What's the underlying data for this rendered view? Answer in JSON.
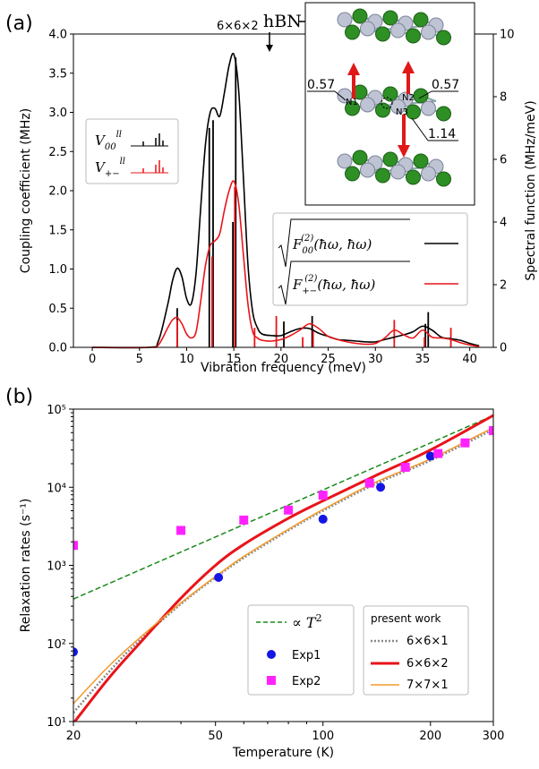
{
  "panel_a": {
    "label": "(a)",
    "supercell_label": "6×6×2",
    "material_label": "hBN",
    "structure_labels": {
      "n1": "N1",
      "n2": "N2",
      "n3": "N3",
      "d1": "0.57",
      "d2": "0.57",
      "d3": "1.14"
    },
    "legend_sticks": [
      {
        "label": "V00ll",
        "color": "#000000"
      },
      {
        "label": "V+−ll",
        "color": "#e8141a"
      }
    ],
    "legend_curves": [
      {
        "label": "√F00(2)(ħω,ħω)",
        "color": "#000000"
      },
      {
        "label": "√F+−(2)(ħω,ħω)",
        "color": "#e8141a"
      }
    ]
  },
  "panel_b": {
    "label": "(b)",
    "legend_left": [
      {
        "label": "∝ T²",
        "color": "#1a8a1a"
      },
      {
        "label": "Exp1",
        "color": "#1515e6"
      },
      {
        "label": "Exp2",
        "color": "#ff22ff"
      }
    ],
    "legend_right_title": "present work",
    "legend_right": [
      {
        "label": "6×6×1",
        "color": "#888888"
      },
      {
        "label": "6×6×2",
        "color": "#e8141a"
      },
      {
        "label": "7×7×1",
        "color": "#f39a2c"
      }
    ]
  },
  "chart_data": [
    {
      "type": "line",
      "xlabel": "Vibration frequency (meV)",
      "ylabel": "Coupling coefficient (MHz)",
      "y2label": "Spectral function (MHz/meV)",
      "xlim": [
        -2,
        42.5
      ],
      "ylim": [
        0,
        4.0
      ],
      "y2lim": [
        0,
        10
      ],
      "xticks": [
        0,
        5,
        10,
        15,
        20,
        25,
        30,
        35,
        40
      ],
      "yticks": [
        0.0,
        0.5,
        1.0,
        1.5,
        2.0,
        2.5,
        3.0,
        3.5,
        4.0
      ],
      "y2ticks": [
        0,
        2,
        4,
        6,
        8,
        10
      ],
      "ytick_labels": [
        "0.0",
        "0.5",
        "1.0",
        "1.5",
        "2.0",
        "2.5",
        "3.0",
        "3.5",
        "4.0"
      ],
      "y2tick_labels": [
        "0",
        "2",
        "4",
        "6",
        "8",
        "10"
      ],
      "series": [
        {
          "name": "√F00(2)(ħω,ħω)",
          "color": "#000000",
          "x": [
            0,
            6,
            7,
            8,
            8.5,
            9,
            9.5,
            10,
            10.5,
            11,
            11.5,
            12,
            12.5,
            13,
            13.5,
            14,
            14.5,
            15,
            15.5,
            16,
            16.5,
            17,
            17.5,
            18,
            19,
            20,
            21,
            22,
            23,
            24,
            25,
            26,
            27,
            28,
            29,
            30,
            31,
            32,
            33,
            34,
            35,
            36,
            37,
            38,
            39,
            40,
            41
          ],
          "y": [
            0,
            0,
            0.08,
            0.55,
            0.85,
            1.01,
            0.9,
            0.62,
            0.56,
            0.95,
            1.8,
            2.6,
            3.0,
            3.05,
            2.95,
            3.25,
            3.6,
            3.74,
            3.3,
            2.2,
            1.05,
            0.45,
            0.25,
            0.17,
            0.15,
            0.15,
            0.2,
            0.24,
            0.24,
            0.18,
            0.14,
            0.1,
            0.09,
            0.08,
            0.07,
            0.07,
            0.1,
            0.13,
            0.16,
            0.2,
            0.27,
            0.22,
            0.13,
            0.11,
            0.09,
            0.05,
            0.02
          ]
        },
        {
          "name": "√F+−(2)(ħω,ħω)",
          "color": "#e8141a",
          "x": [
            0,
            6,
            7,
            8,
            8.5,
            9,
            9.5,
            10,
            10.5,
            11,
            11.5,
            12,
            12.5,
            13,
            13.5,
            14,
            14.5,
            15,
            15.5,
            16,
            16.5,
            17,
            17.5,
            18,
            19,
            20,
            21,
            22,
            23,
            24,
            25,
            26,
            27,
            28,
            29,
            30,
            31,
            32,
            33,
            34,
            35,
            36,
            37,
            38,
            39,
            40,
            41
          ],
          "y": [
            0,
            0,
            0.03,
            0.25,
            0.35,
            0.38,
            0.3,
            0.17,
            0.12,
            0.2,
            0.6,
            1.05,
            1.3,
            1.36,
            1.45,
            1.75,
            2.0,
            2.12,
            1.85,
            1.2,
            0.55,
            0.2,
            0.12,
            0.09,
            0.08,
            0.1,
            0.15,
            0.22,
            0.3,
            0.24,
            0.14,
            0.1,
            0.07,
            0.05,
            0.04,
            0.05,
            0.12,
            0.22,
            0.16,
            0.12,
            0.22,
            0.13,
            0.12,
            0.1,
            0.06,
            0.03,
            0.01
          ]
        }
      ],
      "sticks": [
        {
          "name": "V00ll",
          "color": "#000000",
          "x": [
            9,
            12.4,
            12.8,
            14.9,
            15.2,
            20.3,
            23.3,
            35.3,
            35.6
          ],
          "y": [
            0.5,
            2.8,
            2.9,
            1.6,
            3.7,
            0.33,
            0.4,
            0.3,
            0.45
          ]
        },
        {
          "name": "V+−ll",
          "color": "#e8141a",
          "x": [
            9.0,
            12.7,
            15.1,
            17.2,
            19.5,
            22.3,
            23.4,
            32.0,
            35.2,
            38.0
          ],
          "y": [
            0.35,
            1.16,
            2.05,
            0.25,
            0.4,
            0.13,
            0.23,
            0.35,
            0.13,
            0.25
          ]
        }
      ]
    },
    {
      "type": "line",
      "xlabel": "Temperature (K)",
      "ylabel": "Relaxation rates (s⁻¹)",
      "xscale": "log",
      "yscale": "log",
      "xlim": [
        20,
        300
      ],
      "ylim": [
        10,
        100000
      ],
      "xticks": [
        20,
        50,
        100,
        200,
        300
      ],
      "xtick_labels": [
        "20",
        "50",
        "100",
        "200",
        "300"
      ],
      "yticks": [
        10,
        100,
        1000,
        10000,
        100000
      ],
      "ytick_labels": [
        "10¹",
        "10²",
        "10³",
        "10⁴",
        "10⁵"
      ],
      "legend": [
        "top-left-middle",
        "bottom-right"
      ],
      "series": [
        {
          "name": "∝ T²",
          "color": "#1a8a1a",
          "style": "dashed",
          "x": [
            20,
            300
          ],
          "y": [
            370,
            83000
          ]
        },
        {
          "name": "6×6×1",
          "color": "#888888",
          "style": "dotted",
          "x": [
            20,
            25,
            30,
            40,
            50,
            60,
            80,
            100,
            140,
            200,
            300
          ],
          "y": [
            13,
            42,
            100,
            320,
            700,
            1250,
            2800,
            5000,
            11000,
            22000,
            55000
          ]
        },
        {
          "name": "6×6×2",
          "color": "#e8141a",
          "style": "solid",
          "x": [
            20,
            25,
            30,
            40,
            50,
            60,
            80,
            100,
            140,
            200,
            300
          ],
          "y": [
            9.5,
            35,
            90,
            380,
            1000,
            1850,
            4000,
            6700,
            14000,
            30000,
            83000
          ]
        },
        {
          "name": "7×7×1",
          "color": "#f39a2c",
          "style": "solid",
          "x": [
            20,
            25,
            30,
            40,
            50,
            60,
            80,
            100,
            140,
            200,
            300
          ],
          "y": [
            17,
            50,
            108,
            330,
            720,
            1300,
            2900,
            5200,
            11500,
            23000,
            58000
          ]
        },
        {
          "name": "Exp1",
          "color": "#1515e6",
          "marker": "circle",
          "x": [
            20,
            51,
            100,
            145,
            200,
            300
          ],
          "y": [
            78,
            700,
            3900,
            10000,
            25000,
            53000
          ]
        },
        {
          "name": "Exp2",
          "color": "#ff22ff",
          "marker": "square",
          "x": [
            20,
            40,
            60,
            80,
            100,
            135,
            170,
            210,
            250,
            300
          ],
          "y": [
            1800,
            2800,
            3800,
            5100,
            7900,
            11300,
            18000,
            27000,
            37000,
            53000
          ]
        }
      ]
    }
  ]
}
